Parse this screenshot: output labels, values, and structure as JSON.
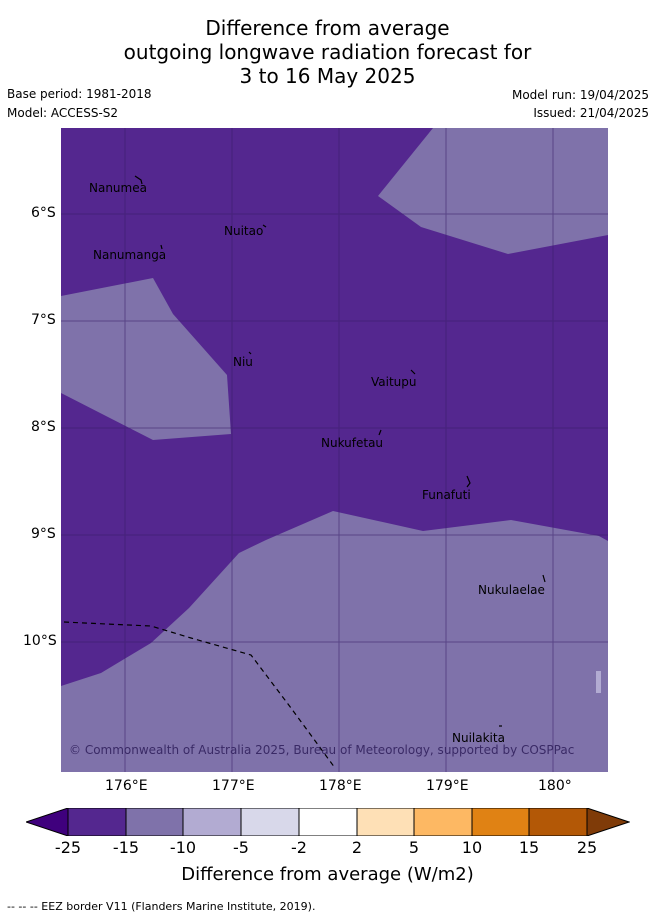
{
  "title": {
    "line1": "Difference from average",
    "line2": "outgoing longwave radiation forecast for",
    "line3": "3 to 16 May 2025"
  },
  "meta": {
    "base_period": "Base period: 1981-2018",
    "model": "Model: ACCESS-S2",
    "model_run": "Model run: 19/04/2025",
    "issued": "Issued: 21/04/2025"
  },
  "map": {
    "copyright": "© Commonwealth of Australia 2025, Bureau of Meteorology, supported by COSPPac",
    "lat_ticks": [
      "6°S",
      "7°S",
      "8°S",
      "9°S",
      "10°S"
    ],
    "lon_ticks": [
      "176°E",
      "177°E",
      "178°E",
      "179°E",
      "180°"
    ],
    "places": [
      "Nanumea",
      "Nuitao",
      "Nanumanga",
      "Niu",
      "Vaitupu",
      "Nukufetau",
      "Funafuti",
      "Nukulaelae",
      "Nuilakita"
    ],
    "colors": {
      "class_neg25_neg15": "#54278f",
      "class_neg15_neg10": "#7f72aa",
      "border": "#000000"
    }
  },
  "colorbar": {
    "labels": [
      "-25",
      "-15",
      "-10",
      "-5",
      "-2",
      "2",
      "5",
      "10",
      "15",
      "25"
    ],
    "colors": [
      "#3f007d",
      "#54278f",
      "#7f72aa",
      "#b2abd2",
      "#d8d8ea",
      "#ffffff",
      "#fee0b6",
      "#fdb863",
      "#e08214",
      "#b35806",
      "#7f3b08"
    ],
    "title": "Difference from average (W/m2)"
  },
  "legend_note": "-- -- -- EEZ border V11 (Flanders Marine Institute, 2019)."
}
